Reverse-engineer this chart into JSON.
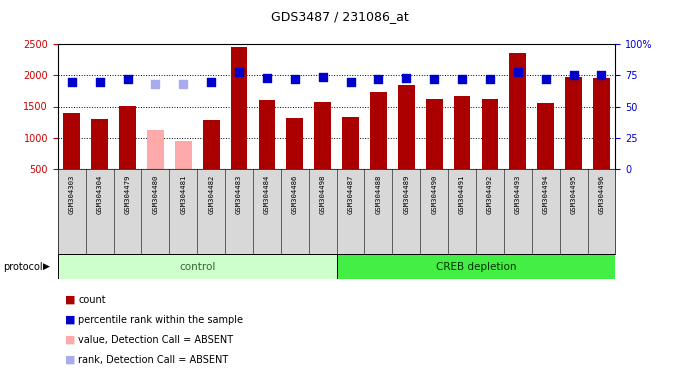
{
  "title": "GDS3487 / 231086_at",
  "samples": [
    "GSM304303",
    "GSM304304",
    "GSM304479",
    "GSM304480",
    "GSM304481",
    "GSM304482",
    "GSM304483",
    "GSM304484",
    "GSM304486",
    "GSM304498",
    "GSM304487",
    "GSM304488",
    "GSM304489",
    "GSM304490",
    "GSM304491",
    "GSM304492",
    "GSM304493",
    "GSM304494",
    "GSM304495",
    "GSM304496"
  ],
  "count_values": [
    1390,
    1305,
    1510,
    1130,
    955,
    1280,
    2450,
    1600,
    1310,
    1580,
    1340,
    1740,
    1840,
    1620,
    1670,
    1620,
    2350,
    1560,
    1970,
    1960
  ],
  "percentile_values": [
    70,
    70,
    72,
    68,
    68,
    70,
    78,
    73,
    72,
    74,
    70,
    72,
    73,
    72,
    72,
    72,
    78,
    72,
    75,
    75
  ],
  "absent_mask": [
    false,
    false,
    false,
    true,
    true,
    false,
    false,
    false,
    false,
    false,
    false,
    false,
    false,
    false,
    false,
    false,
    false,
    false,
    false,
    false
  ],
  "control_count": 10,
  "creb_count": 10,
  "bar_color_normal": "#aa0000",
  "bar_color_absent": "#ffaaaa",
  "dot_color_normal": "#0000cc",
  "dot_color_absent": "#aaaaee",
  "ylim_left": [
    500,
    2500
  ],
  "ylim_right": [
    0,
    100
  ],
  "yticks_left": [
    500,
    1000,
    1500,
    2000,
    2500
  ],
  "yticks_right": [
    0,
    25,
    50,
    75,
    100
  ],
  "control_label": "control",
  "creb_label": "CREB depletion",
  "protocol_label": "protocol",
  "legend_items": [
    {
      "label": "count",
      "color": "#aa0000"
    },
    {
      "label": "percentile rank within the sample",
      "color": "#0000cc"
    },
    {
      "label": "value, Detection Call = ABSENT",
      "color": "#ffaaaa"
    },
    {
      "label": "rank, Detection Call = ABSENT",
      "color": "#aaaaee"
    }
  ],
  "bg_color": "#ffffff",
  "bar_width": 0.6,
  "dot_size": 30,
  "control_color": "#ccffcc",
  "creb_color": "#44ee44"
}
